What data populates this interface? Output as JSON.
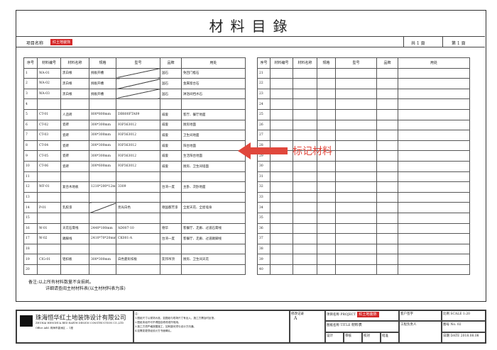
{
  "title": "材料目錄",
  "project": {
    "label": "项目名称",
    "logo_text": "红土地装饰",
    "total_pages": "共 1 頁",
    "page": "第 1 頁"
  },
  "headers": [
    "序号",
    "材料编号",
    "材料名称",
    "规格",
    "型号",
    "品牌",
    "用处"
  ],
  "left_rows": [
    [
      "1",
      "WA-01",
      "黑白根",
      "挑板开槽",
      "",
      "国石",
      "免回门槛石"
    ],
    [
      "2",
      "WA-02",
      "黑白根",
      "挑板开槽",
      "",
      "国石",
      "金属窗台石"
    ],
    [
      "3",
      "WA-03",
      "黑白根",
      "挑板开槽",
      "",
      "国石",
      "淋浴间挡水石"
    ],
    [
      "4",
      "",
      "",
      "",
      "",
      "",
      ""
    ],
    [
      "5",
      "CT-01",
      "人造砖",
      "800*800mm",
      "DB800FTA09",
      "威俊",
      "客厅、餐厅地面"
    ],
    [
      "6",
      "CT-02",
      "瓷砖",
      "300*300mm",
      "93P363012",
      "威俊",
      "厨房地面"
    ],
    [
      "7",
      "CT-03",
      "瓷砖",
      "300*300mm",
      "93P363012",
      "威俊",
      "卫生间地面"
    ],
    [
      "8",
      "CT-04",
      "瓷砖",
      "300*300mm",
      "93P363012",
      "威俊",
      "阳台地面"
    ],
    [
      "9",
      "CT-05",
      "瓷砖",
      "300*300mm",
      "93P363012",
      "威俊",
      "生活阳台地面"
    ],
    [
      "10",
      "CT-06",
      "瓷砖",
      "300*600mm",
      "93P363012",
      "威俊",
      "厨房、卫生间墙面"
    ],
    [
      "11",
      "",
      "",
      "",
      "",
      "",
      ""
    ],
    [
      "12",
      "WF-01",
      "复合木地板",
      "1210*200*12mm",
      "3309",
      "台湾一度",
      "主卧、次卧地面"
    ],
    [
      "13",
      "",
      "",
      "",
      "",
      "",
      ""
    ],
    [
      "14",
      "P-01",
      "乳胶漆",
      "",
      "亮光白色",
      "德国都芳漆",
      "全屋天花、全屋墙身"
    ],
    [
      "15",
      "",
      "",
      "",
      "",
      "",
      ""
    ],
    [
      "16",
      "W-01",
      "天花石膏线",
      "2440*100mm",
      "AD007-10",
      "德华",
      "客餐厅、走廊、过道石膏线"
    ],
    [
      "17",
      "W-02",
      "踢脚线",
      "2410*70*20mm",
      "CK001-A",
      "台湾一度",
      "客餐厅、走廊、过道踢脚线"
    ],
    [
      "18",
      "",
      "",
      "",
      "",
      "",
      ""
    ],
    [
      "19",
      "CIG-01",
      "铝扣板",
      "300*300mm",
      "白色菱形扣板",
      "友邦吊顶",
      "厨房、卫生间天花"
    ],
    [
      "20",
      "",
      "",
      "",
      "",
      "",
      ""
    ]
  ],
  "right_rows": [
    "21",
    "22",
    "23",
    "24",
    "25",
    "26",
    "27",
    "28",
    "29",
    "30",
    "31",
    "32",
    "33",
    "34",
    "35",
    "36",
    "37",
    "38",
    "39",
    "40"
  ],
  "annotation": {
    "label": "标记材料",
    "color": "#e0473c"
  },
  "notes": [
    "备注:以上所有材料数量不含损耗。",
    "详细请查阅主材材料表(以主材材料表为准)"
  ],
  "title_block": {
    "company": "珠海恒华红土地装饰设计有限公司",
    "company_en": "ZHUHAI HENGHUA RED EARTH DESIGN CONSTRUCTION CO.,LTD",
    "address": "Office Add. 珠海市香洲区 ... 1座",
    "note_title": "注:",
    "note_lines": [
      "1.图纸尺寸以现场为准，如图纸与现场尺寸有出入，施工方需及时反馈。",
      "2.图纸未经许可不得擅自修改或作他用。",
      "3.施工方须严格按图施工，如有疑问须与设计方沟通。",
      "4.如需变更须经设计方书面确认。"
    ],
    "revision_label": "修改记录",
    "revision_mark": "A",
    "project_name_label": "项目名称 PROJECT",
    "drawing_name_label": "图纸名称 TITLE",
    "drawing_name": "材料表",
    "client_label": "客户签字",
    "engineer_label": "工程负责人",
    "scale_label": "比例 SCALE",
    "scale": "1:20",
    "drawing_no_label": "图号 No.",
    "drawing_no": "02",
    "design_label": "设计",
    "check_label": "审核",
    "review_label": "校对",
    "approve_label": "批准",
    "date_label": "日期 DATE",
    "date": "2018.08.08"
  }
}
